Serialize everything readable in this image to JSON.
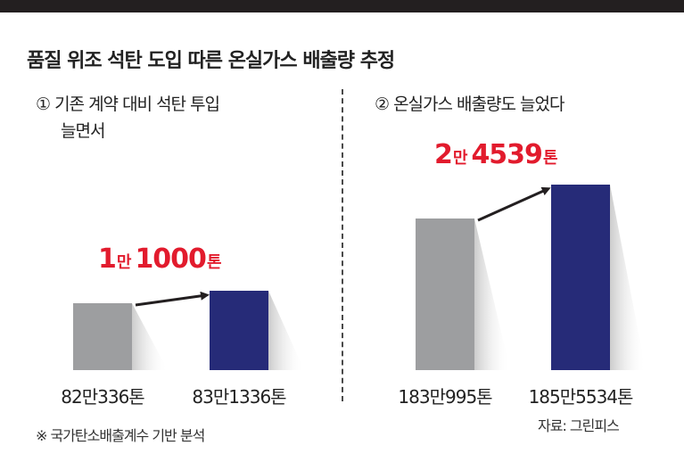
{
  "header": {
    "title": "품질 위조 석탄 도입 따른 온실가스 배출량 추정"
  },
  "left_panel": {
    "subtitle_line1": "① 기존 계약 대비 석탄 투입",
    "subtitle_line2": "늘면서",
    "diff_big1": "1",
    "diff_small1": "만",
    "diff_big2": "1000",
    "diff_small2": "톤"
  },
  "right_panel": {
    "subtitle_line1": "② 온실가스 배출량도 늘었다",
    "diff_big1": "2",
    "diff_small1": "만",
    "diff_big2": "4539",
    "diff_small2": "톤"
  },
  "footer": {
    "footnote": "※ 국가탄소배출계수 기반 분석",
    "source": "자료: 그린피스"
  },
  "colors": {
    "before_bar": "#9d9ea0",
    "after_bar": "#262b78",
    "highlight": "#e21b2d",
    "arrow": "#231f20"
  },
  "chart_data": [
    {
      "type": "bar",
      "title": "① 기존 계약 대비 석탄 투입 늘면서",
      "unit": "톤",
      "categories": [
        "82만336톤",
        "83만1336톤"
      ],
      "values": [
        820336,
        831336
      ],
      "difference": 11000,
      "difference_label": "1만 1000톤"
    },
    {
      "type": "bar",
      "title": "② 온실가스 배출량도 늘었다",
      "unit": "톤",
      "categories": [
        "183만995톤",
        "185만5534톤"
      ],
      "values": [
        1830995,
        1855534
      ],
      "difference": 24539,
      "difference_label": "2만 4539톤"
    }
  ]
}
